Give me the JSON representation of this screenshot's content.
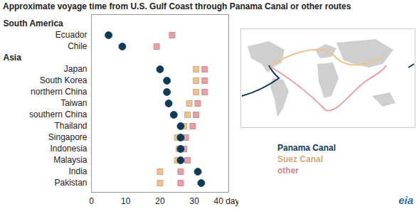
{
  "chart_data": {
    "type": "scatter",
    "orientation": "horizontal",
    "title": "Approximate voyage time from U.S. Gulf Coast through Panama Canal or other routes",
    "categories": [
      "South America",
      "Ecuador",
      "Chile",
      "Asia",
      "Japan",
      "South Korea",
      "northern China",
      "Taiwan",
      "southern China",
      "Thailand",
      "Singapore",
      "Indonesia",
      "Malaysia",
      "India",
      "Pakistan"
    ],
    "series": [
      {
        "name": "Panama Canal",
        "color": "#0e3a5a",
        "marker": "circle",
        "values": [
          null,
          5,
          9,
          null,
          20,
          22,
          22,
          22.5,
          24,
          26,
          26,
          26,
          26,
          31,
          32
        ]
      },
      {
        "name": "Suez Canal",
        "color": "#f0c38c",
        "marker": "square",
        "values": [
          null,
          null,
          null,
          null,
          30.5,
          30.5,
          30.5,
          28.5,
          28,
          27,
          25,
          25.5,
          25,
          20,
          20
        ]
      },
      {
        "name": "other",
        "color": "#eb9fa5",
        "marker": "square",
        "values": [
          null,
          23.5,
          19,
          null,
          33,
          33,
          33,
          31,
          30.5,
          29.5,
          27.5,
          27,
          28,
          26,
          26
        ]
      }
    ],
    "xlim": [
      0,
      40
    ],
    "xticks": [
      0,
      10,
      20,
      30,
      {
        "value": 40,
        "label": "40 days"
      }
    ],
    "grid": false,
    "legend": "bottom-right",
    "annotations": [
      "eia"
    ]
  }
}
